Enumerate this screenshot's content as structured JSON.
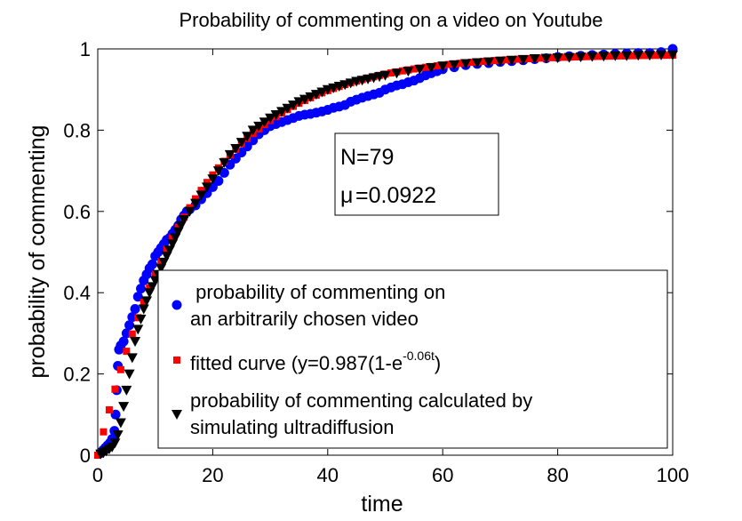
{
  "chart_data": {
    "type": "scatter",
    "title": "Probability of commenting on a video on Youtube",
    "xlabel": "time",
    "ylabel": "probability of commenting",
    "xlim": [
      0,
      100
    ],
    "ylim": [
      0,
      1
    ],
    "xticks": [
      0,
      20,
      40,
      60,
      80,
      100
    ],
    "yticks": [
      0,
      0.2,
      0.4,
      0.6,
      0.8,
      1
    ],
    "xtick_labels": [
      "0",
      "20",
      "40",
      "60",
      "80",
      "100"
    ],
    "ytick_labels": [
      "0",
      "0.2",
      "0.4",
      "0.6",
      "0.8",
      "1"
    ],
    "grid": false,
    "annotation": {
      "lines": [
        "N=79",
        "=0.0922"
      ],
      "symbol": "μ"
    },
    "legend": {
      "placement": "lower-right",
      "entries": [
        {
          "series": 0,
          "lines": [
            " probability of commenting on",
            "an arbitrarily chosen video"
          ]
        },
        {
          "series": 1,
          "lines": [
            "fitted curve (y=0.987(1-e"
          ],
          "superscript": "-0.06t",
          "suffix": ")"
        },
        {
          "series": 2,
          "lines": [
            "probability of commenting calculated by",
            "simulating ultradiffusion"
          ]
        }
      ]
    },
    "series": [
      {
        "marker": "circle",
        "color": "#0000ff",
        "points": [
          [
            0.5,
            0.005
          ],
          [
            0.9,
            0.012
          ],
          [
            1.3,
            0.018
          ],
          [
            1.7,
            0.024
          ],
          [
            2.1,
            0.03
          ],
          [
            2.5,
            0.04
          ],
          [
            2.9,
            0.06
          ],
          [
            3.1,
            0.1
          ],
          [
            3.3,
            0.16
          ],
          [
            3.5,
            0.22
          ],
          [
            3.7,
            0.26
          ],
          [
            4.0,
            0.27
          ],
          [
            4.5,
            0.28
          ],
          [
            5.0,
            0.3
          ],
          [
            5.5,
            0.32
          ],
          [
            6.0,
            0.34
          ],
          [
            6.5,
            0.36
          ],
          [
            7.0,
            0.39
          ],
          [
            7.5,
            0.41
          ],
          [
            8.0,
            0.43
          ],
          [
            8.5,
            0.445
          ],
          [
            9.0,
            0.46
          ],
          [
            9.5,
            0.47
          ],
          [
            10,
            0.49
          ],
          [
            10.5,
            0.5
          ],
          [
            11,
            0.51
          ],
          [
            11.5,
            0.52
          ],
          [
            12,
            0.53
          ],
          [
            12.5,
            0.535
          ],
          [
            13,
            0.545
          ],
          [
            13.5,
            0.555
          ],
          [
            14,
            0.565
          ],
          [
            14.5,
            0.58
          ],
          [
            15,
            0.59
          ],
          [
            15.5,
            0.6
          ],
          [
            16,
            0.605
          ],
          [
            17,
            0.615
          ],
          [
            18,
            0.63
          ],
          [
            19,
            0.645
          ],
          [
            20,
            0.66
          ],
          [
            21,
            0.675
          ],
          [
            22,
            0.695
          ],
          [
            23,
            0.715
          ],
          [
            24,
            0.73
          ],
          [
            25,
            0.745
          ],
          [
            26,
            0.76
          ],
          [
            27,
            0.775
          ],
          [
            28,
            0.79
          ],
          [
            29,
            0.8
          ],
          [
            30,
            0.81
          ],
          [
            31,
            0.815
          ],
          [
            32,
            0.82
          ],
          [
            33,
            0.825
          ],
          [
            34,
            0.83
          ],
          [
            35,
            0.835
          ],
          [
            36,
            0.838
          ],
          [
            37,
            0.84
          ],
          [
            38,
            0.843
          ],
          [
            39,
            0.846
          ],
          [
            40,
            0.85
          ],
          [
            41,
            0.855
          ],
          [
            42,
            0.858
          ],
          [
            43,
            0.862
          ],
          [
            44,
            0.87
          ],
          [
            45,
            0.875
          ],
          [
            46,
            0.88
          ],
          [
            47,
            0.884
          ],
          [
            48,
            0.888
          ],
          [
            49,
            0.892
          ],
          [
            50,
            0.9
          ],
          [
            51,
            0.905
          ],
          [
            52,
            0.91
          ],
          [
            53,
            0.913
          ],
          [
            54,
            0.918
          ],
          [
            55,
            0.922
          ],
          [
            56,
            0.928
          ],
          [
            57,
            0.935
          ],
          [
            58,
            0.94
          ],
          [
            59,
            0.945
          ],
          [
            60,
            0.95
          ],
          [
            62,
            0.955
          ],
          [
            64,
            0.96
          ],
          [
            66,
            0.963
          ],
          [
            68,
            0.965
          ],
          [
            70,
            0.968
          ],
          [
            72,
            0.97
          ],
          [
            74,
            0.972
          ],
          [
            76,
            0.975
          ],
          [
            78,
            0.977
          ],
          [
            80,
            0.98
          ],
          [
            82,
            0.982
          ],
          [
            84,
            0.983
          ],
          [
            86,
            0.985
          ],
          [
            88,
            0.986
          ],
          [
            90,
            0.988
          ],
          [
            92,
            0.989
          ],
          [
            94,
            0.99
          ],
          [
            96,
            0.99
          ],
          [
            98,
            0.992
          ],
          [
            100,
            1.0
          ]
        ]
      },
      {
        "marker": "square",
        "color": "#ff0000",
        "x": [
          0,
          1,
          2,
          3,
          4,
          5,
          6,
          7,
          8,
          9,
          10,
          11,
          12,
          13,
          14,
          15,
          16,
          17,
          18,
          19,
          20,
          21,
          22,
          23,
          24,
          25,
          26,
          27,
          28,
          29,
          30,
          31,
          32,
          33,
          34,
          35,
          36,
          37,
          38,
          39,
          40,
          41,
          42,
          43,
          44,
          45,
          46,
          47,
          48,
          49,
          50,
          51,
          52,
          53,
          54,
          55,
          56,
          57,
          58,
          59,
          60,
          61,
          62,
          63,
          64,
          65,
          66,
          67,
          68,
          69,
          70,
          71,
          72,
          73,
          74,
          75,
          76,
          77,
          78,
          79,
          80,
          81,
          82,
          83,
          84,
          85,
          86,
          87,
          88,
          89,
          90,
          91,
          92,
          93,
          94,
          95,
          96,
          97,
          98,
          99,
          100
        ],
        "fit": {
          "a": 0.987,
          "k": 0.06
        }
      },
      {
        "marker": "triangle-down",
        "color": "#000000",
        "points": [
          [
            0.5,
            0.003
          ],
          [
            1,
            0.006
          ],
          [
            1.5,
            0.01
          ],
          [
            2,
            0.015
          ],
          [
            2.5,
            0.02
          ],
          [
            3,
            0.03
          ],
          [
            3.5,
            0.05
          ],
          [
            4,
            0.08
          ],
          [
            4.5,
            0.12
          ],
          [
            5,
            0.16
          ],
          [
            5.5,
            0.2
          ],
          [
            6,
            0.24
          ],
          [
            6.5,
            0.28
          ],
          [
            7,
            0.31
          ],
          [
            7.5,
            0.335
          ],
          [
            8,
            0.36
          ],
          [
            8.5,
            0.38
          ],
          [
            9,
            0.4
          ],
          [
            9.5,
            0.415
          ],
          [
            10,
            0.43
          ],
          [
            10.5,
            0.445
          ],
          [
            11,
            0.46
          ],
          [
            11.5,
            0.475
          ],
          [
            12,
            0.49
          ],
          [
            12.5,
            0.505
          ],
          [
            13,
            0.52
          ],
          [
            13.5,
            0.535
          ],
          [
            14,
            0.55
          ],
          [
            14.5,
            0.565
          ],
          [
            15,
            0.58
          ],
          [
            16,
            0.6
          ],
          [
            17,
            0.62
          ],
          [
            18,
            0.64
          ],
          [
            19,
            0.66
          ],
          [
            20,
            0.68
          ],
          [
            21,
            0.7
          ],
          [
            22,
            0.72
          ],
          [
            23,
            0.74
          ],
          [
            24,
            0.755
          ],
          [
            25,
            0.77
          ],
          [
            26,
            0.785
          ],
          [
            27,
            0.8
          ],
          [
            28,
            0.81
          ],
          [
            29,
            0.82
          ],
          [
            30,
            0.83
          ],
          [
            31,
            0.838
          ],
          [
            32,
            0.846
          ],
          [
            33,
            0.854
          ],
          [
            34,
            0.862
          ],
          [
            35,
            0.87
          ],
          [
            36,
            0.876
          ],
          [
            37,
            0.882
          ],
          [
            38,
            0.888
          ],
          [
            39,
            0.894
          ],
          [
            40,
            0.9
          ],
          [
            41,
            0.904
          ],
          [
            42,
            0.908
          ],
          [
            43,
            0.912
          ],
          [
            44,
            0.916
          ],
          [
            45,
            0.92
          ],
          [
            46,
            0.923
          ],
          [
            47,
            0.926
          ],
          [
            48,
            0.929
          ],
          [
            49,
            0.932
          ],
          [
            50,
            0.935
          ],
          [
            52,
            0.94
          ],
          [
            54,
            0.945
          ],
          [
            56,
            0.95
          ],
          [
            58,
            0.954
          ],
          [
            60,
            0.958
          ],
          [
            62,
            0.961
          ],
          [
            64,
            0.964
          ],
          [
            66,
            0.966
          ],
          [
            68,
            0.968
          ],
          [
            70,
            0.97
          ],
          [
            72,
            0.972
          ],
          [
            74,
            0.974
          ],
          [
            76,
            0.976
          ],
          [
            78,
            0.977
          ],
          [
            80,
            0.978
          ],
          [
            82,
            0.979
          ],
          [
            84,
            0.98
          ],
          [
            86,
            0.981
          ],
          [
            88,
            0.982
          ],
          [
            90,
            0.983
          ],
          [
            92,
            0.983
          ],
          [
            94,
            0.984
          ],
          [
            96,
            0.984
          ],
          [
            98,
            0.985
          ],
          [
            100,
            0.985
          ]
        ]
      }
    ]
  }
}
